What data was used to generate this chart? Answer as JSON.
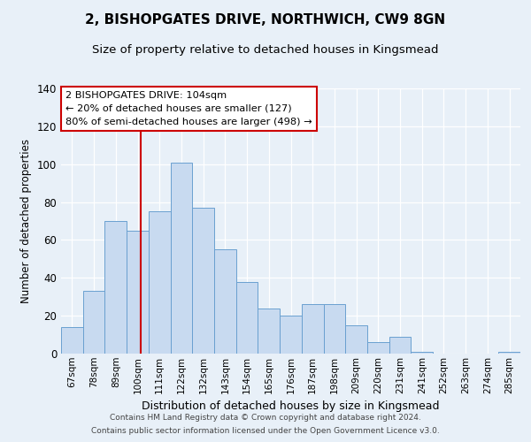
{
  "title": "2, BISHOPGATES DRIVE, NORTHWICH, CW9 8GN",
  "subtitle": "Size of property relative to detached houses in Kingsmead",
  "xlabel": "Distribution of detached houses by size in Kingsmead",
  "ylabel": "Number of detached properties",
  "bin_labels": [
    "67sqm",
    "78sqm",
    "89sqm",
    "100sqm",
    "111sqm",
    "122sqm",
    "132sqm",
    "143sqm",
    "154sqm",
    "165sqm",
    "176sqm",
    "187sqm",
    "198sqm",
    "209sqm",
    "220sqm",
    "231sqm",
    "241sqm",
    "252sqm",
    "263sqm",
    "274sqm",
    "285sqm"
  ],
  "bar_heights": [
    14,
    33,
    70,
    65,
    75,
    101,
    77,
    55,
    38,
    24,
    20,
    26,
    26,
    15,
    6,
    9,
    1,
    0,
    0,
    0,
    1
  ],
  "bar_color": "#c8daf0",
  "bar_edgecolor": "#6aa0d0",
  "vline_x": 3.65,
  "vline_color": "#cc0000",
  "ylim": [
    0,
    140
  ],
  "yticks": [
    0,
    20,
    40,
    60,
    80,
    100,
    120,
    140
  ],
  "annotation_title": "2 BISHOPGATES DRIVE: 104sqm",
  "annotation_line1": "← 20% of detached houses are smaller (127)",
  "annotation_line2": "80% of semi-detached houses are larger (498) →",
  "annotation_box_color": "#ffffff",
  "annotation_box_edgecolor": "#cc0000",
  "footer1": "Contains HM Land Registry data © Crown copyright and database right 2024.",
  "footer2": "Contains public sector information licensed under the Open Government Licence v3.0.",
  "background_color": "#e8f0f8",
  "grid_color": "#ffffff"
}
